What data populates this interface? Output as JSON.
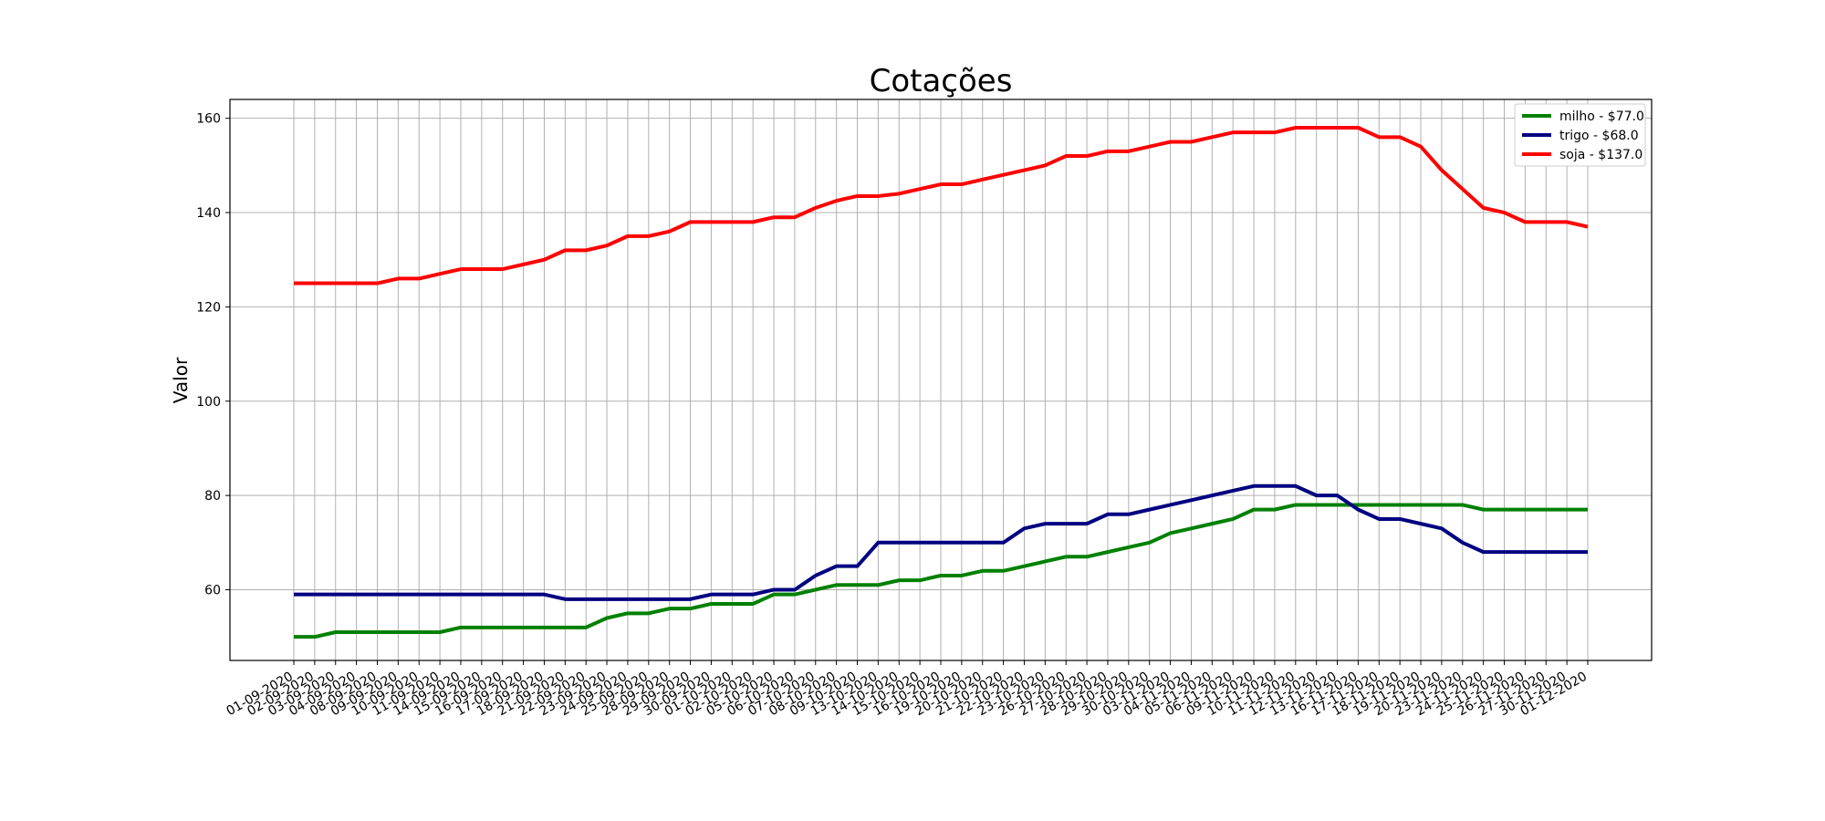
{
  "chart_data": {
    "type": "line",
    "title": "Cotações",
    "xlabel": "",
    "ylabel": "Valor",
    "ylim": [
      45,
      164
    ],
    "yticks": [
      60,
      80,
      100,
      120,
      140,
      160
    ],
    "grid": true,
    "legend_position": "top-right",
    "x": [
      "01-09-2020",
      "02-09-2020",
      "03-09-2020",
      "04-09-2020",
      "08-09-2020",
      "09-09-2020",
      "10-09-2020",
      "11-09-2020",
      "14-09-2020",
      "15-09-2020",
      "16-09-2020",
      "17-09-2020",
      "18-09-2020",
      "21-09-2020",
      "22-09-2020",
      "23-09-2020",
      "24-09-2020",
      "25-09-2020",
      "28-09-2020",
      "29-09-2020",
      "30-09-2020",
      "01-10-2020",
      "02-10-2020",
      "05-10-2020",
      "06-10-2020",
      "07-10-2020",
      "08-10-2020",
      "09-10-2020",
      "13-10-2020",
      "14-10-2020",
      "15-10-2020",
      "16-10-2020",
      "19-10-2020",
      "20-10-2020",
      "21-10-2020",
      "22-10-2020",
      "23-10-2020",
      "26-10-2020",
      "27-10-2020",
      "28-10-2020",
      "29-10-2020",
      "30-10-2020",
      "03-11-2020",
      "04-11-2020",
      "05-11-2020",
      "06-11-2020",
      "09-11-2020",
      "10-11-2020",
      "11-11-2020",
      "12-11-2020",
      "13-11-2020",
      "16-11-2020",
      "17-11-2020",
      "18-11-2020",
      "19-11-2020",
      "20-11-2020",
      "23-11-2020",
      "24-11-2020",
      "25-11-2020",
      "26-11-2020",
      "27-11-2020",
      "30-11-2020",
      "01-12-2020"
    ],
    "series": [
      {
        "name": "milho - $77.0",
        "color": "#008000",
        "values": [
          50,
          50,
          51,
          51,
          51,
          51,
          51,
          51,
          52,
          52,
          52,
          52,
          52,
          52,
          52,
          54,
          55,
          55,
          56,
          56,
          57,
          57,
          57,
          59,
          59,
          60,
          61,
          61,
          61,
          62,
          62,
          63,
          63,
          64,
          64,
          65,
          66,
          67,
          67,
          68,
          69,
          70,
          72,
          73,
          74,
          75,
          77,
          77,
          78,
          78,
          78,
          78,
          78,
          78,
          78,
          78,
          78,
          77,
          77,
          77,
          77,
          77,
          77
        ]
      },
      {
        "name": "trigo - $68.0",
        "color": "#000080",
        "values": [
          59,
          59,
          59,
          59,
          59,
          59,
          59,
          59,
          59,
          59,
          59,
          59,
          59,
          58,
          58,
          58,
          58,
          58,
          58,
          58,
          59,
          59,
          59,
          60,
          60,
          63,
          65,
          65,
          70,
          70,
          70,
          70,
          70,
          70,
          70,
          73,
          74,
          74,
          74,
          76,
          76,
          77,
          78,
          79,
          80,
          81,
          82,
          82,
          82,
          80,
          80,
          77,
          75,
          75,
          74,
          73,
          70,
          68,
          68,
          68,
          68,
          68,
          68
        ]
      },
      {
        "name": "soja - $137.0",
        "color": "#ff0000",
        "values": [
          125,
          125,
          125,
          125,
          125,
          126,
          126,
          127,
          128,
          128,
          128,
          129,
          130,
          132,
          132,
          133,
          135,
          135,
          136,
          138,
          138,
          138,
          138,
          139,
          139,
          141,
          142.5,
          143.5,
          143.5,
          144,
          145,
          146,
          146,
          147,
          148,
          149,
          150,
          152,
          152,
          153,
          153,
          154,
          155,
          155,
          156,
          157,
          157,
          157,
          158,
          158,
          158,
          158,
          156,
          156,
          154,
          149,
          145,
          141,
          140,
          138,
          138,
          138,
          137
        ]
      }
    ]
  }
}
